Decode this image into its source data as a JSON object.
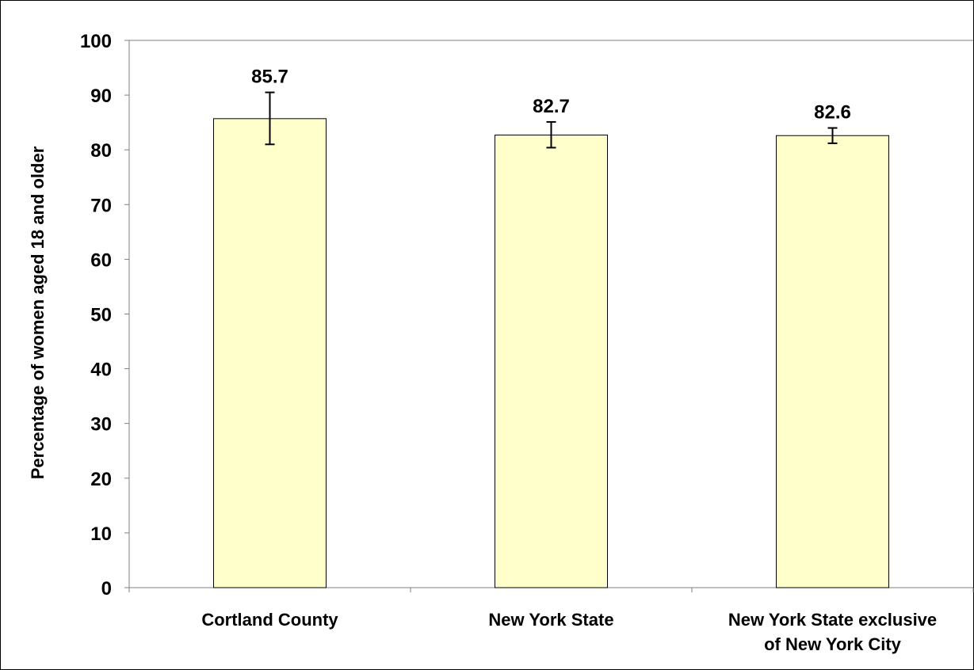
{
  "chart_data": {
    "type": "bar",
    "title": "",
    "xlabel": "",
    "ylabel": "Percentage of women aged 18 and older",
    "ylim": [
      0,
      100
    ],
    "yticks": [
      0,
      10,
      20,
      30,
      40,
      50,
      60,
      70,
      80,
      90,
      100
    ],
    "grid": false,
    "legend": "none",
    "categories": [
      [
        "Cortland County"
      ],
      [
        "New York State"
      ],
      [
        "New York State exclusive",
        "of New York City"
      ]
    ],
    "values": [
      85.7,
      82.7,
      82.6
    ],
    "data_labels": [
      "85.7",
      "82.7",
      "82.6"
    ],
    "error_bars": [
      {
        "low": 81.0,
        "high": 90.5
      },
      {
        "low": 80.4,
        "high": 85.1
      },
      {
        "low": 81.2,
        "high": 84.0
      }
    ],
    "colors": {
      "bar_fill": "#FFFFCC",
      "bar_stroke": "#000000",
      "axis": "#808080",
      "frame": "#000000"
    }
  }
}
